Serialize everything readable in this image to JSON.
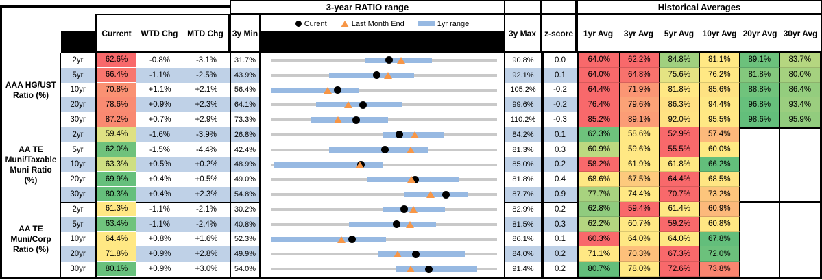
{
  "header": {
    "range_title": "3-year RATIO range",
    "hist_title": "Historical Averages",
    "col_current": "Current",
    "col_wtd": "WTD Chg",
    "col_mtd": "MTD Chg",
    "col_min": "3y Min",
    "col_max": "3y Max",
    "col_z": "z-score",
    "avg_cols": [
      "1yr Avg",
      "3yr Avg",
      "5yr Avg",
      "10yr Avg",
      "20yr Avg",
      "30yr Avg"
    ]
  },
  "legend": {
    "current": "Curent",
    "last_month": "Last Month End",
    "range": "1yr range"
  },
  "colors": {
    "stripe": "#bfd1e7",
    "track": "#c9c9c9",
    "bar": "#97b9e2",
    "triangle": "#f79646",
    "dot": "#000000",
    "scale_red": "#f8696b",
    "scale_yellow": "#ffe884",
    "scale_green": "#63be7b"
  },
  "chart_data": {
    "type": "table",
    "description": "Muni ratio monitor: current ratios, weekly/monthly changes, 3-year min/max with 1yr-range bullet chart (dot=current, triangle=last month end), z-score and historical averages",
    "groups": [
      {
        "label": "AAA HG/UST\nRatio (%)",
        "rows": [
          {
            "tenor": "2yr",
            "current": "62.6%",
            "current_bg": "#f8696b",
            "wtd": "-0.8%",
            "mtd": "-3.1%",
            "min": "31.7%",
            "max": "90.8%",
            "z": "0.0",
            "min_v": 31.7,
            "max_v": 90.8,
            "bar_lo": 56.2,
            "bar_hi": 73.8,
            "current_v": 62.6,
            "last_month_v": 65.7,
            "avgs": [
              {
                "v": "64.0%",
                "bg": "#f8696b"
              },
              {
                "v": "62.2%",
                "bg": "#f8696b"
              },
              {
                "v": "84.8%",
                "bg": "#a0d07f"
              },
              {
                "v": "81.1%",
                "bg": "#ffe884"
              },
              {
                "v": "89.1%",
                "bg": "#6cc17c"
              },
              {
                "v": "83.7%",
                "bg": "#b5d680"
              }
            ]
          },
          {
            "tenor": "5yr",
            "current": "66.4%",
            "current_bg": "#f8766e",
            "wtd": "-1.1%",
            "mtd": "-2.5%",
            "min": "43.9%",
            "max": "92.1%",
            "z": "0.1",
            "min_v": 43.9,
            "max_v": 92.1,
            "bar_lo": 56.3,
            "bar_hi": 74.4,
            "current_v": 66.4,
            "last_month_v": 68.9,
            "avgs": [
              {
                "v": "64.0%",
                "bg": "#f8696b"
              },
              {
                "v": "64.8%",
                "bg": "#f8726d"
              },
              {
                "v": "75.6%",
                "bg": "#e4e383"
              },
              {
                "v": "76.2%",
                "bg": "#ffe884"
              },
              {
                "v": "81.8%",
                "bg": "#84c87d"
              },
              {
                "v": "80.0%",
                "bg": "#a5d17f"
              }
            ]
          },
          {
            "tenor": "10yr",
            "current": "70.8%",
            "current_bg": "#fa9173",
            "wtd": "+1.1%",
            "mtd": "+2.1%",
            "min": "56.4%",
            "max": "105.2%",
            "z": "-0.2",
            "min_v": 56.4,
            "max_v": 105.2,
            "bar_lo": 56.4,
            "bar_hi": 75.5,
            "current_v": 70.8,
            "last_month_v": 68.7,
            "avgs": [
              {
                "v": "64.4%",
                "bg": "#f8696b"
              },
              {
                "v": "71.9%",
                "bg": "#fb9674"
              },
              {
                "v": "81.8%",
                "bg": "#ffe884"
              },
              {
                "v": "85.6%",
                "bg": "#fee282"
              },
              {
                "v": "88.8%",
                "bg": "#70c37c"
              },
              {
                "v": "86.4%",
                "bg": "#94cd7e"
              }
            ]
          },
          {
            "tenor": "20yr",
            "current": "78.6%",
            "current_bg": "#f98b72",
            "wtd": "+0.9%",
            "mtd": "+2.3%",
            "min": "64.1%",
            "max": "99.6%",
            "z": "-0.2",
            "min_v": 64.1,
            "max_v": 99.6,
            "bar_lo": 71.2,
            "bar_hi": 84.8,
            "current_v": 78.6,
            "last_month_v": 76.3,
            "avgs": [
              {
                "v": "76.4%",
                "bg": "#f8696b"
              },
              {
                "v": "79.6%",
                "bg": "#fba277"
              },
              {
                "v": "86.3%",
                "bg": "#ffe083"
              },
              {
                "v": "94.4%",
                "bg": "#fee884"
              },
              {
                "v": "96.8%",
                "bg": "#67c07c"
              },
              {
                "v": "93.4%",
                "bg": "#9bce7f"
              }
            ]
          },
          {
            "tenor": "30yr",
            "current": "87.2%",
            "current_bg": "#f98971",
            "wtd": "+0.7%",
            "mtd": "+2.9%",
            "min": "73.3%",
            "max": "110.2%",
            "z": "-0.3",
            "min_v": 73.3,
            "max_v": 110.2,
            "bar_lo": 79.9,
            "bar_hi": 92.4,
            "current_v": 87.2,
            "last_month_v": 84.3,
            "avgs": [
              {
                "v": "85.2%",
                "bg": "#f8696b"
              },
              {
                "v": "89.1%",
                "bg": "#fb9d76"
              },
              {
                "v": "92.0%",
                "bg": "#ffe283"
              },
              {
                "v": "95.5%",
                "bg": "#ffe884"
              },
              {
                "v": "98.6%",
                "bg": "#63be7b"
              },
              {
                "v": "95.9%",
                "bg": "#92cc7e"
              }
            ]
          }
        ]
      },
      {
        "label": "AA TE\nMuni/Taxable\nMuni Ratio\n(%)",
        "rows": [
          {
            "tenor": "2yr",
            "current": "59.4%",
            "current_bg": "#dfe183",
            "wtd": "-1.6%",
            "mtd": "-3.9%",
            "min": "26.8%",
            "max": "84.2%",
            "z": "0.1",
            "min_v": 26.8,
            "max_v": 84.2,
            "bar_lo": 55.4,
            "bar_hi": 70.8,
            "current_v": 59.4,
            "last_month_v": 63.3,
            "avgs": [
              {
                "v": "62.3%",
                "bg": "#6ec27c"
              },
              {
                "v": "58.6%",
                "bg": "#ffe884"
              },
              {
                "v": "52.9%",
                "bg": "#f8696b"
              },
              {
                "v": "57.4%",
                "bg": "#fcb97b"
              },
              null,
              null
            ]
          },
          {
            "tenor": "5yr",
            "current": "62.0%",
            "current_bg": "#6fc27c",
            "wtd": "-1.5%",
            "mtd": "-4.4%",
            "min": "42.4%",
            "max": "81.3%",
            "z": "0.3",
            "min_v": 42.4,
            "max_v": 81.3,
            "bar_lo": 52.4,
            "bar_hi": 69.5,
            "current_v": 62.0,
            "last_month_v": 66.4,
            "avgs": [
              {
                "v": "60.9%",
                "bg": "#bcd980"
              },
              {
                "v": "59.6%",
                "bg": "#ffe884"
              },
              {
                "v": "55.5%",
                "bg": "#f8696b"
              },
              {
                "v": "60.0%",
                "bg": "#ffe983"
              },
              null,
              null
            ]
          },
          {
            "tenor": "10yr",
            "current": "63.3%",
            "current_bg": "#cedf82",
            "wtd": "+0.5%",
            "mtd": "+0.2%",
            "min": "48.9%",
            "max": "85.0%",
            "z": "0.2",
            "min_v": 48.9,
            "max_v": 85.0,
            "bar_lo": 49.3,
            "bar_hi": 66.7,
            "current_v": 63.3,
            "last_month_v": 63.1,
            "avgs": [
              {
                "v": "58.2%",
                "bg": "#f8696b"
              },
              {
                "v": "61.9%",
                "bg": "#ffe884"
              },
              {
                "v": "61.8%",
                "bg": "#fee883"
              },
              {
                "v": "66.2%",
                "bg": "#63be7b"
              },
              null,
              null
            ]
          },
          {
            "tenor": "20yr",
            "current": "69.9%",
            "current_bg": "#66c07c",
            "wtd": "+0.4%",
            "mtd": "+0.5%",
            "min": "49.0%",
            "max": "81.8%",
            "z": "0.4",
            "min_v": 49.0,
            "max_v": 81.8,
            "bar_lo": 62.9,
            "bar_hi": 76.2,
            "current_v": 69.9,
            "last_month_v": 69.4,
            "avgs": [
              {
                "v": "68.6%",
                "bg": "#ffe884"
              },
              {
                "v": "67.5%",
                "bg": "#fdca7d"
              },
              {
                "v": "64.4%",
                "bg": "#f8696b"
              },
              {
                "v": "68.5%",
                "bg": "#ffe683"
              },
              null,
              null
            ]
          },
          {
            "tenor": "30yr",
            "current": "80.3%",
            "current_bg": "#65bf7b",
            "wtd": "+0.4%",
            "mtd": "+2.3%",
            "min": "54.8%",
            "max": "87.7%",
            "z": "0.9",
            "min_v": 54.8,
            "max_v": 87.7,
            "bar_lo": 74.2,
            "bar_hi": 83.4,
            "current_v": 80.3,
            "last_month_v": 78.0,
            "avgs": [
              {
                "v": "77.7%",
                "bg": "#a8d27f"
              },
              {
                "v": "74.4%",
                "bg": "#ffe884"
              },
              {
                "v": "70.7%",
                "bg": "#f8696b"
              },
              {
                "v": "73.2%",
                "bg": "#fcc57c"
              },
              null,
              null
            ]
          }
        ]
      },
      {
        "label": "AA TE\nMuni/Corp\nRatio (%)",
        "rows": [
          {
            "tenor": "2yr",
            "current": "61.3%",
            "current_bg": "#ffe884",
            "wtd": "-1.1%",
            "mtd": "-2.1%",
            "min": "30.2%",
            "max": "82.9%",
            "z": "0.2",
            "min_v": 30.2,
            "max_v": 82.9,
            "bar_lo": 56.3,
            "bar_hi": 70.8,
            "current_v": 61.3,
            "last_month_v": 63.4,
            "avgs": [
              {
                "v": "62.8%",
                "bg": "#90cb7e"
              },
              {
                "v": "59.4%",
                "bg": "#f8696b"
              },
              {
                "v": "61.4%",
                "bg": "#ffe884"
              },
              {
                "v": "60.9%",
                "bg": "#fcb97b"
              },
              null,
              null
            ]
          },
          {
            "tenor": "5yr",
            "current": "63.4%",
            "current_bg": "#70c37d",
            "wtd": "-1.1%",
            "mtd": "-2.4%",
            "min": "40.8%",
            "max": "81.5%",
            "z": "0.3",
            "min_v": 40.8,
            "max_v": 81.5,
            "bar_lo": 54.8,
            "bar_hi": 70.5,
            "current_v": 63.4,
            "last_month_v": 65.8,
            "avgs": [
              {
                "v": "62.2%",
                "bg": "#b4d580"
              },
              {
                "v": "60.7%",
                "bg": "#ffe884"
              },
              {
                "v": "59.2%",
                "bg": "#f8696b"
              },
              {
                "v": "60.8%",
                "bg": "#ffe783"
              },
              null,
              null
            ]
          },
          {
            "tenor": "10yr",
            "current": "64.4%",
            "current_bg": "#ffe884",
            "wtd": "+0.8%",
            "mtd": "+1.6%",
            "min": "52.3%",
            "max": "86.1%",
            "z": "0.1",
            "min_v": 52.3,
            "max_v": 86.1,
            "bar_lo": 52.3,
            "bar_hi": 69.5,
            "current_v": 64.4,
            "last_month_v": 62.8,
            "avgs": [
              {
                "v": "60.3%",
                "bg": "#f8696b"
              },
              {
                "v": "64.0%",
                "bg": "#ffe884"
              },
              {
                "v": "64.0%",
                "bg": "#fee883"
              },
              {
                "v": "67.8%",
                "bg": "#63be7b"
              },
              null,
              null
            ]
          },
          {
            "tenor": "20yr",
            "current": "71.8%",
            "current_bg": "#ffe884",
            "wtd": "+0.9%",
            "mtd": "+2.8%",
            "min": "49.9%",
            "max": "84.0%",
            "z": "0.2",
            "min_v": 49.9,
            "max_v": 84.0,
            "bar_lo": 66.1,
            "bar_hi": 79.1,
            "current_v": 71.8,
            "last_month_v": 69.0,
            "avgs": [
              {
                "v": "71.1%",
                "bg": "#ffe884"
              },
              {
                "v": "70.3%",
                "bg": "#fdc07b"
              },
              {
                "v": "67.3%",
                "bg": "#f8696b"
              },
              {
                "v": "72.0%",
                "bg": "#6cc17c"
              },
              null,
              null
            ]
          },
          {
            "tenor": "30yr",
            "current": "80.1%",
            "current_bg": "#68c07c",
            "wtd": "+0.9%",
            "mtd": "+3.0%",
            "min": "54.0%",
            "max": "91.4%",
            "z": "0.2",
            "min_v": 54.0,
            "max_v": 91.4,
            "bar_lo": 74.7,
            "bar_hi": 88.1,
            "current_v": 80.1,
            "last_month_v": 77.1,
            "avgs": [
              {
                "v": "80.7%",
                "bg": "#63be7b"
              },
              {
                "v": "78.0%",
                "bg": "#ffe884"
              },
              {
                "v": "72.6%",
                "bg": "#f8696b"
              },
              {
                "v": "73.8%",
                "bg": "#f98570"
              },
              null,
              null
            ]
          }
        ]
      }
    ]
  }
}
